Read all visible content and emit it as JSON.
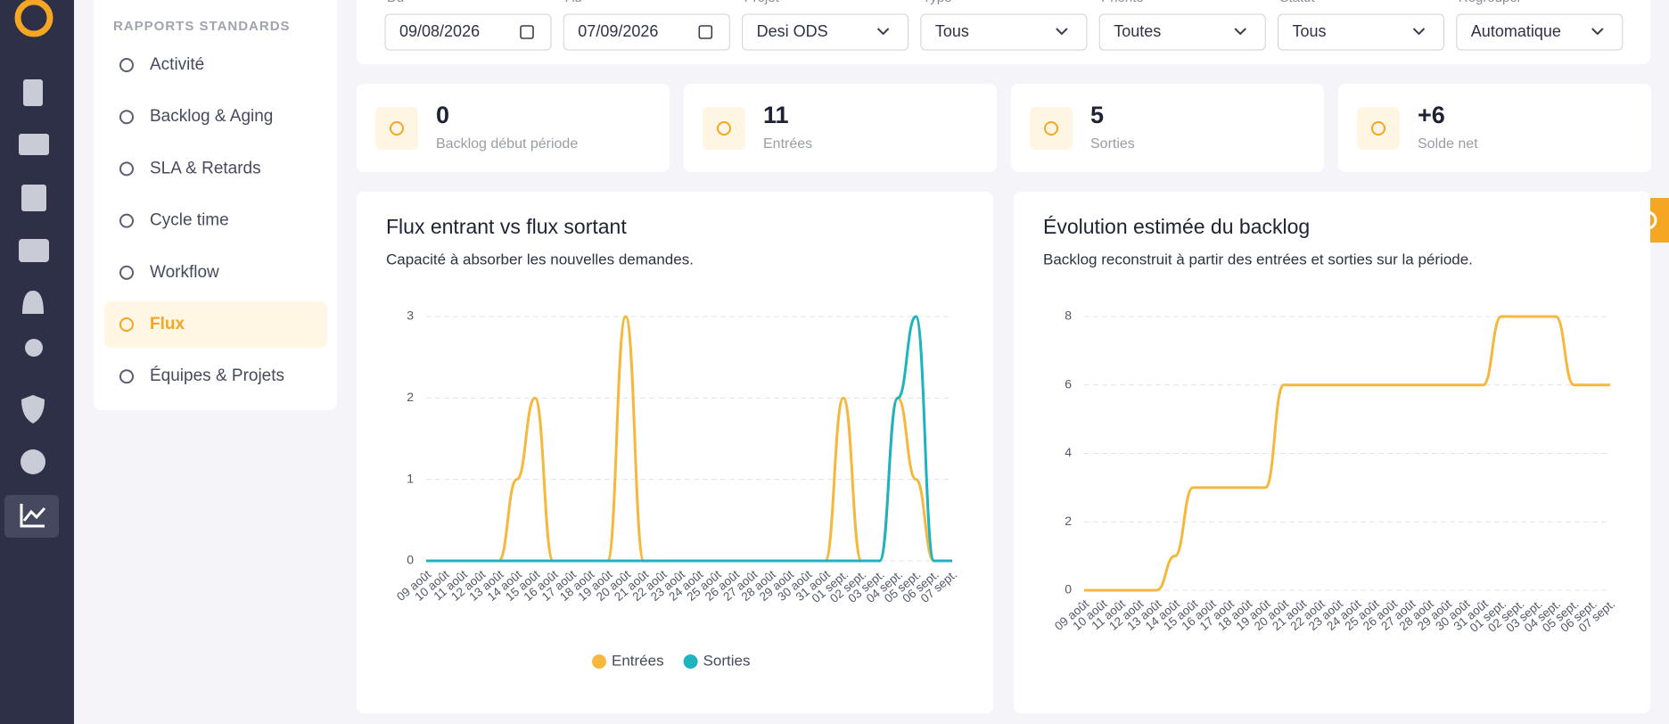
{
  "sidebar_heading": "RAPPORTS STANDARDS",
  "nav": [
    "Activité",
    "Backlog & Aging",
    "SLA & Retards",
    "Cycle time",
    "Workflow",
    "Flux",
    "Équipes & Projets"
  ],
  "active_nav": 5,
  "filters": [
    {
      "label": "Du",
      "value": "09/08/2026",
      "kind": "date"
    },
    {
      "label": "Au",
      "value": "07/09/2026",
      "kind": "date"
    },
    {
      "label": "Projet",
      "value": "Desi ODS",
      "kind": "select"
    },
    {
      "label": "Type",
      "value": "Tous",
      "kind": "select"
    },
    {
      "label": "Priorité",
      "value": "Toutes",
      "kind": "select"
    },
    {
      "label": "Statut",
      "value": "Tous",
      "kind": "select"
    },
    {
      "label": "Regrouper",
      "value": "Automatique",
      "kind": "select"
    }
  ],
  "kpis": [
    {
      "value": "0",
      "label": "Backlog début période"
    },
    {
      "value": "11",
      "label": "Entrées"
    },
    {
      "value": "5",
      "label": "Sorties"
    },
    {
      "value": "+6",
      "label": "Solde net"
    }
  ],
  "chart_data": [
    {
      "type": "line",
      "title": "Flux entrant vs flux sortant",
      "subtitle": "Capacité à absorber les nouvelles demandes.",
      "categories": [
        "09 août",
        "10 août",
        "11 août",
        "12 août",
        "13 août",
        "14 août",
        "15 août",
        "16 août",
        "17 août",
        "18 août",
        "19 août",
        "20 août",
        "21 août",
        "22 août",
        "23 août",
        "24 août",
        "25 août",
        "26 août",
        "27 août",
        "28 août",
        "29 août",
        "30 août",
        "31 août",
        "01 sept.",
        "02 sept.",
        "03 sept.",
        "04 sept.",
        "05 sept.",
        "06 sept.",
        "07 sept."
      ],
      "series": [
        {
          "name": "Entrées",
          "color": "#f5b83d",
          "values": [
            0,
            0,
            0,
            0,
            0,
            1,
            2,
            0,
            0,
            0,
            0,
            3,
            0,
            0,
            0,
            0,
            0,
            0,
            0,
            0,
            0,
            0,
            0,
            2,
            0,
            0,
            2,
            1,
            0,
            0
          ]
        },
        {
          "name": "Sorties",
          "color": "#1fb3c0",
          "values": [
            0,
            0,
            0,
            0,
            0,
            0,
            0,
            0,
            0,
            0,
            0,
            0,
            0,
            0,
            0,
            0,
            0,
            0,
            0,
            0,
            0,
            0,
            0,
            0,
            0,
            0,
            2,
            3,
            0,
            0
          ]
        }
      ],
      "ylim": [
        0,
        3
      ],
      "yticks": [
        0,
        1,
        2,
        3
      ],
      "grid": true,
      "legend": "bottom"
    },
    {
      "type": "line",
      "title": "Évolution estimée du backlog",
      "subtitle": "Backlog reconstruit à partir des entrées et sorties sur la période.",
      "categories": [
        "09 août",
        "10 août",
        "11 août",
        "12 août",
        "13 août",
        "14 août",
        "15 août",
        "16 août",
        "17 août",
        "18 août",
        "19 août",
        "20 août",
        "21 août",
        "22 août",
        "23 août",
        "24 août",
        "25 août",
        "26 août",
        "27 août",
        "28 août",
        "29 août",
        "30 août",
        "31 août",
        "01 sept.",
        "02 sept.",
        "03 sept.",
        "04 sept.",
        "05 sept.",
        "06 sept.",
        "07 sept."
      ],
      "series": [
        {
          "color": "#f5b83d",
          "values": [
            0,
            0,
            0,
            0,
            0,
            1,
            3,
            3,
            3,
            3,
            3,
            6,
            6,
            6,
            6,
            6,
            6,
            6,
            6,
            6,
            6,
            6,
            6,
            8,
            8,
            8,
            8,
            6,
            6,
            6
          ]
        }
      ],
      "ylim": [
        0,
        8
      ],
      "yticks": [
        0,
        2,
        4,
        6,
        8
      ],
      "grid": true
    }
  ]
}
